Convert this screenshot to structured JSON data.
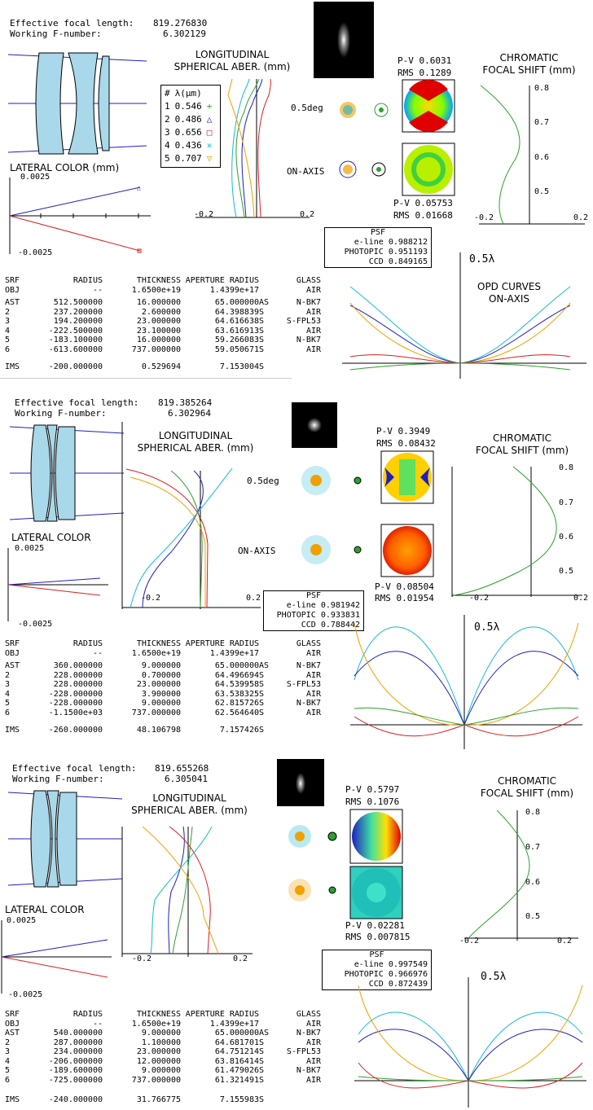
{
  "labels": {
    "efl": "Effective focal length:",
    "wfn": "Working F-number:",
    "lsa_title": "LONGITUDINAL\nSPHERICAL ABER. (mm)",
    "lat_title": "LATERAL COLOR (mm)",
    "lat_title2": "LATERAL COLOR",
    "cfs_title": "CHROMATIC\nFOCAL SHIFT (mm)",
    "opd_title": "OPD CURVES\nON-AXIS",
    "wave_label": "0.5λ",
    "field_05": "0.5deg",
    "field_axis": "ON-AXIS",
    "psf_header": "PSF",
    "psf_eline": "e-line",
    "psf_photopic": "PHOTOPIC",
    "psf_ccd": "CCD",
    "legend_hdr_num": "#",
    "legend_hdr_lam": "λ(μm)",
    "tbl_headers": [
      "SRF",
      "RADIUS",
      "THICKNESS",
      "APERTURE RADIUS",
      "GLASS"
    ],
    "tick_neg": "-0.2",
    "tick_pos": "0.2",
    "lat_top": "0.0025",
    "lat_bot": "-0.0025",
    "cfs_ticks": [
      "0.8",
      "0.7",
      "0.6",
      "0.5"
    ]
  },
  "legend": [
    {
      "n": "1",
      "lam": "0.546",
      "sym": "+",
      "color": "#2ca02c"
    },
    {
      "n": "2",
      "lam": "0.486",
      "sym": "△",
      "color": "#1f1fc0"
    },
    {
      "n": "3",
      "lam": "0.656",
      "sym": "□",
      "color": "#d62020"
    },
    {
      "n": "4",
      "lam": "0.436",
      "sym": "✕",
      "color": "#17b8d0"
    },
    {
      "n": "5",
      "lam": "0.707",
      "sym": "▽",
      "color": "#f0a000"
    }
  ],
  "designs": [
    {
      "efl": "819.276830",
      "wfn": "6.302129",
      "pv_off": "P-V 0.6031",
      "rms_off": "RMS 0.1289",
      "pv_on": "P-V 0.05753",
      "rms_on": "RMS 0.01668",
      "psf": {
        "eline": "0.988212",
        "photopic": "0.951193",
        "ccd": "0.849165"
      },
      "rows": [
        [
          "OBJ",
          "--",
          "1.6500e+19",
          "1.4399e+17",
          "",
          "AIR"
        ],
        [
          "AST",
          "512.500000",
          "16.000000",
          "65.000000",
          "AS",
          "N-BK7"
        ],
        [
          "2",
          "237.200000",
          "2.600000",
          "64.398839",
          "S",
          "AIR"
        ],
        [
          "3",
          "194.200000",
          "23.000000",
          "64.616638",
          "S",
          "S-FPL53"
        ],
        [
          "4",
          "-222.500000",
          "23.100000",
          "63.616913",
          "S",
          "AIR"
        ],
        [
          "5",
          "-183.100000",
          "16.000000",
          "59.266083",
          "S",
          "N-BK7"
        ],
        [
          "6",
          "-613.600000",
          "737.000000",
          "59.050671",
          "S",
          "AIR"
        ]
      ],
      "ims": [
        "IMS",
        "-200.000000",
        "0.529694",
        "7.153004",
        "S",
        ""
      ]
    },
    {
      "efl": "819.385264",
      "wfn": "6.302964",
      "pv_off": "P-V 0.3949",
      "rms_off": "RMS 0.08432",
      "pv_on": "P-V 0.08504",
      "rms_on": "RMS 0.01954",
      "psf": {
        "eline": "0.981942",
        "photopic": "0.933831",
        "ccd": "0.788442"
      },
      "rows": [
        [
          "OBJ",
          "--",
          "1.6500e+19",
          "1.4399e+17",
          "",
          "AIR"
        ],
        [
          "AST",
          "360.000000",
          "9.000000",
          "65.000000",
          "AS",
          "N-BK7"
        ],
        [
          "2",
          "228.000000",
          "0.700000",
          "64.496694",
          "S",
          "AIR"
        ],
        [
          "3",
          "228.000000",
          "23.000000",
          "64.539958",
          "S",
          "S-FPL53"
        ],
        [
          "4",
          "-228.000000",
          "3.900000",
          "63.538325",
          "S",
          "AIR"
        ],
        [
          "5",
          "-228.000000",
          "9.000000",
          "62.815726",
          "S",
          "N-BK7"
        ],
        [
          "6",
          "-1.1500e+03",
          "737.000000",
          "62.564640",
          "S",
          "AIR"
        ]
      ],
      "ims": [
        "IMS",
        "-260.000000",
        "48.106798",
        "7.157426",
        "S",
        ""
      ]
    },
    {
      "efl": "819.655268",
      "wfn": "6.305041",
      "pv_off": "P-V 0.5797",
      "rms_off": "RMS 0.1076",
      "pv_on": "P-V 0.02281",
      "rms_on": "RMS 0.007815",
      "psf": {
        "eline": "0.997549",
        "photopic": "0.966976",
        "ccd": "0.872439"
      },
      "rows": [
        [
          "OBJ",
          "--",
          "1.6500e+19",
          "1.4399e+17",
          "",
          "AIR"
        ],
        [
          "AST",
          "540.000000",
          "9.000000",
          "65.000000",
          "AS",
          "N-BK7"
        ],
        [
          "2",
          "287.000000",
          "1.100000",
          "64.681701",
          "S",
          "AIR"
        ],
        [
          "3",
          "234.000000",
          "23.000000",
          "64.751214",
          "S",
          "S-FPL53"
        ],
        [
          "4",
          "-206.000000",
          "12.000000",
          "63.816414",
          "S",
          "AIR"
        ],
        [
          "5",
          "-189.600000",
          "9.000000",
          "61.479026",
          "S",
          "N-BK7"
        ],
        [
          "6",
          "-725.000000",
          "737.000000",
          "61.321491",
          "S",
          "AIR"
        ]
      ],
      "ims": [
        "IMS",
        "-240.000000",
        "31.766775",
        "7.155983",
        "S",
        ""
      ]
    }
  ]
}
